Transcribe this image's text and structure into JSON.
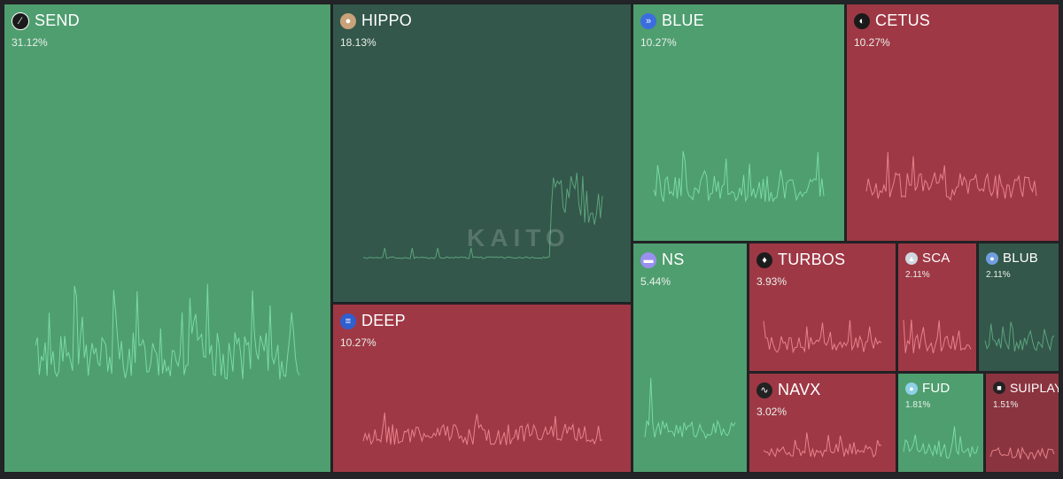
{
  "chart_data": {
    "type": "treemap",
    "title": "",
    "items": [
      {
        "name": "SEND",
        "value": 31.12,
        "label": "31.12%",
        "trend": "up",
        "logo_icon": "send-logo-icon"
      },
      {
        "name": "HIPPO",
        "value": 18.13,
        "label": "18.13%",
        "trend": "up",
        "logo_icon": "hippo-logo-icon"
      },
      {
        "name": "BLUE",
        "value": 10.27,
        "label": "10.27%",
        "trend": "up",
        "logo_icon": "blue-logo-icon"
      },
      {
        "name": "CETUS",
        "value": 10.27,
        "label": "10.27%",
        "trend": "down",
        "logo_icon": "cetus-logo-icon"
      },
      {
        "name": "DEEP",
        "value": 10.27,
        "label": "10.27%",
        "trend": "down",
        "logo_icon": "deep-logo-icon"
      },
      {
        "name": "NS",
        "value": 5.44,
        "label": "5.44%",
        "trend": "up",
        "logo_icon": "ns-logo-icon"
      },
      {
        "name": "TURBOS",
        "value": 3.93,
        "label": "3.93%",
        "trend": "down",
        "logo_icon": "turbos-logo-icon"
      },
      {
        "name": "SCA",
        "value": 2.11,
        "label": "2.11%",
        "trend": "down",
        "logo_icon": "sca-logo-icon"
      },
      {
        "name": "BLUB",
        "value": 2.11,
        "label": "2.11%",
        "trend": "up",
        "logo_icon": "blub-logo-icon"
      },
      {
        "name": "NAVX",
        "value": 3.02,
        "label": "3.02%",
        "trend": "down",
        "logo_icon": "navx-logo-icon"
      },
      {
        "name": "FUD",
        "value": 1.81,
        "label": "1.81%",
        "trend": "up",
        "logo_icon": "fud-logo-icon"
      },
      {
        "name": "SUIPLAY",
        "value": 1.51,
        "label": "1.51%",
        "trend": "down",
        "logo_icon": "suiplay-logo-icon"
      }
    ]
  },
  "watermark": "KAITO",
  "colors": {
    "up": "#4f9e6f",
    "up_dark": "#33574a",
    "down": "#9f3845",
    "line_up": "#7de0a8",
    "line_down": "#f08a90"
  }
}
